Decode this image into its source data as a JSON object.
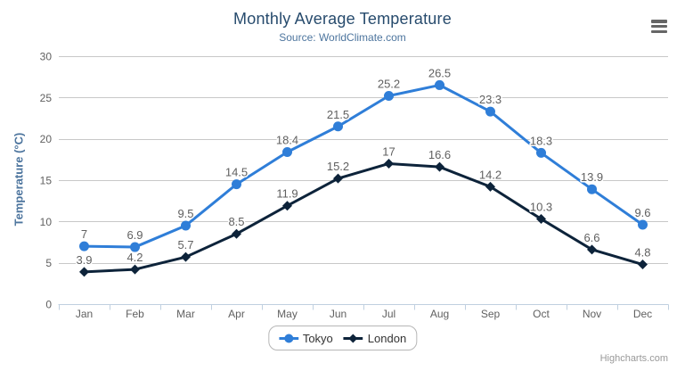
{
  "chart_data": {
    "type": "line",
    "title": "Monthly Average Temperature",
    "subtitle": "Source: WorldClimate.com",
    "categories": [
      "Jan",
      "Feb",
      "Mar",
      "Apr",
      "May",
      "Jun",
      "Jul",
      "Aug",
      "Sep",
      "Oct",
      "Nov",
      "Dec"
    ],
    "series": [
      {
        "name": "Tokyo",
        "color": "#2f7ed8",
        "marker": "circle",
        "values": [
          7.0,
          6.9,
          9.5,
          14.5,
          18.4,
          21.5,
          25.2,
          26.5,
          23.3,
          18.3,
          13.9,
          9.6
        ]
      },
      {
        "name": "London",
        "color": "#0d233a",
        "marker": "diamond",
        "values": [
          3.9,
          4.2,
          5.7,
          8.5,
          11.9,
          15.2,
          17.0,
          16.6,
          14.2,
          10.3,
          6.6,
          4.8
        ]
      }
    ],
    "xlabel": "",
    "ylabel": "Temperature (°C)",
    "ylim": [
      0,
      30
    ],
    "yticks": [
      0,
      5,
      10,
      15,
      20,
      25,
      30
    ],
    "grid": true,
    "legend_position": "bottom",
    "data_labels": true
  },
  "credits": "Highcharts.com",
  "colors": {
    "title": "#274b6d",
    "subtitle": "#4d759e",
    "axis_title": "#4d759e",
    "axis_label": "#606060",
    "data_label": "#606060",
    "grid_line": "#c8c8c8",
    "axis_line": "#c0d0e0",
    "legend_border": "#b6b6b6",
    "legend_text": "#333333",
    "credits": "#999999",
    "menu_icon": "#666666",
    "background": "#ffffff"
  }
}
